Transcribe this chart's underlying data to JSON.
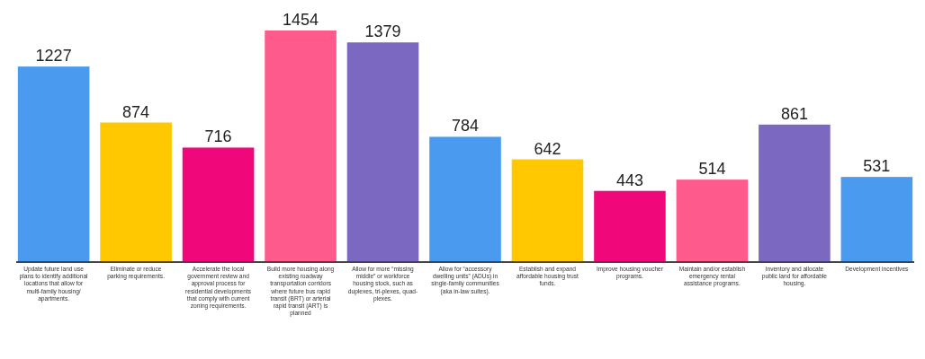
{
  "chart_data": {
    "type": "bar",
    "categories": [
      "Update future land use plans to identify additional locations that allow for multi-family housing/apartments.",
      "Eliminate or reduce parking requirements.",
      "Accelerate the local government review and approval process for residential developments that comply with current zoning requirements.",
      "Build more housing along existing roadway transportation corridors where future bus rapid transit (BRT) or arterial rapid transit (ART) is planned",
      "Allow for more “missing middle” or workforce housing stock, such as duplexes, tri-plexes, quad-plexes.",
      "Allow for “accessory dwelling units” (ADUs) in single-family communities (aka in-law suites).",
      "Establish and expand affordable housing trust funds.",
      "Improve housing voucher programs.",
      "Maintain and/or establish emergency rental assistance programs.",
      "Inventory and allocate public land for affordable housing.",
      "Development incentives"
    ],
    "values": [
      1227,
      874,
      716,
      1454,
      1379,
      784,
      642,
      443,
      514,
      861,
      531
    ],
    "colors": [
      "#4a9af0",
      "#ffc800",
      "#f0087a",
      "#ff5a8c",
      "#7b68c0",
      "#4a9af0",
      "#ffc800",
      "#f0087a",
      "#ff5a8c",
      "#7b68c0",
      "#4a9af0"
    ],
    "data_labels": true
  }
}
